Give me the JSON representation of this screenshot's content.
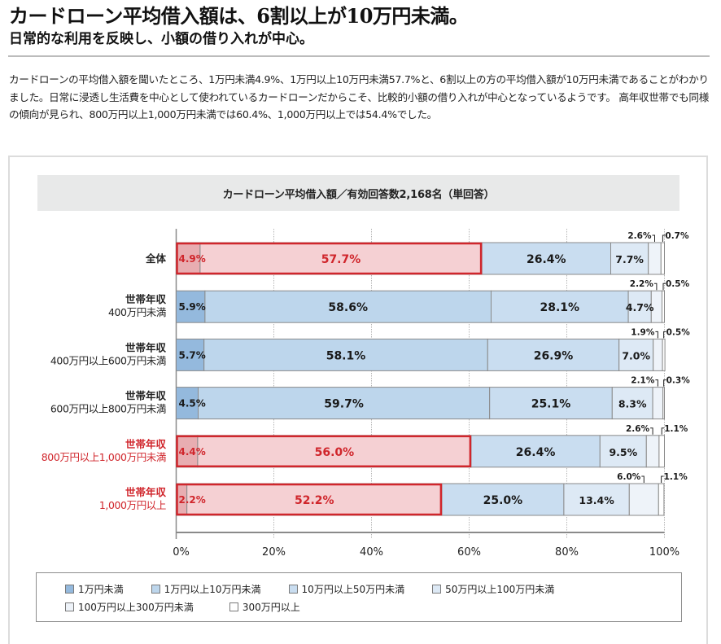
{
  "header": {
    "headline": "カードローン平均借入額は、6割以上が10万円未満。",
    "subheadline": "日常的な利用を反映し、小額の借り入れが中心。",
    "body": "カードローンの平均借入額を聞いたところ、1万円未満4.9%、1万円以上10万円未満57.7%と、6割以上の方の平均借入額が10万円未満であることがわかりました。日常に浸透し生活費を中心として使われているカードローンだからこそ、比較的小額の借り入れが中心となっているようです。 高年収世帯でも同様の傾向が見られ、800万円以上1,000万円未満では60.4%、1,000万円以上では54.4%でした。"
  },
  "colors": {
    "highlight_border": "#d0262c",
    "highlight_text": "#d0262c",
    "highlight_fill_1": "#e8adb1",
    "highlight_fill_2": "#f5d0d3",
    "segment_fills": [
      "#94b9dd",
      "#bdd6ec",
      "#c9ddf0",
      "#dde9f5",
      "#eef3f9",
      "#ffffff"
    ],
    "segment_border": "#8a8a8a",
    "title_box_bg": "#e8e9e9"
  },
  "chart_data": {
    "type": "bar",
    "orientation": "horizontal",
    "stacked": true,
    "title": "カードローン平均借入額／有効回答数2,168名（単回答）",
    "xlabel": "",
    "ylabel": "",
    "xlim": [
      0,
      100
    ],
    "x_ticks": [
      "0%",
      "20%",
      "40%",
      "60%",
      "80%",
      "100%"
    ],
    "grid": true,
    "legend_position": "bottom",
    "categories": [
      {
        "line1": "全体",
        "line2": "",
        "highlight": true
      },
      {
        "line1": "世帯年収",
        "line2": "400万円未満",
        "highlight": false
      },
      {
        "line1": "世帯年収",
        "line2": "400万円以上600万円未満",
        "highlight": false
      },
      {
        "line1": "世帯年収",
        "line2": "600万円以上800万円未満",
        "highlight": false
      },
      {
        "line1": "世帯年収",
        "line2": "800万円以上1,000万円未満",
        "highlight": true
      },
      {
        "line1": "世帯年収",
        "line2": "1,000万円以上",
        "highlight": true
      }
    ],
    "series": [
      {
        "name": "1万円未満",
        "values": [
          4.9,
          5.9,
          5.7,
          4.5,
          4.4,
          2.2
        ]
      },
      {
        "name": "1万円以上10万円未満",
        "values": [
          57.7,
          58.6,
          58.1,
          59.7,
          56.0,
          52.2
        ]
      },
      {
        "name": "10万円以上50万円未満",
        "values": [
          26.4,
          28.1,
          26.9,
          25.1,
          26.4,
          25.0
        ]
      },
      {
        "name": "50万円以上100万円未満",
        "values": [
          7.7,
          4.7,
          7.0,
          8.3,
          9.5,
          13.4
        ]
      },
      {
        "name": "100万円以上300万円未満",
        "values": [
          2.6,
          2.2,
          1.9,
          2.1,
          2.6,
          6.0
        ]
      },
      {
        "name": "300万円以上",
        "values": [
          0.7,
          0.5,
          0.5,
          0.3,
          1.1,
          1.1
        ]
      }
    ],
    "value_format": "{v}%"
  },
  "legend": {
    "row1": [
      "1万円未満",
      "1万円以上10万円未満",
      "10万円以上50万円未満",
      "50万円以上100万円未満"
    ],
    "row2": [
      "100万円以上300万円未満",
      "300万円以上"
    ]
  }
}
